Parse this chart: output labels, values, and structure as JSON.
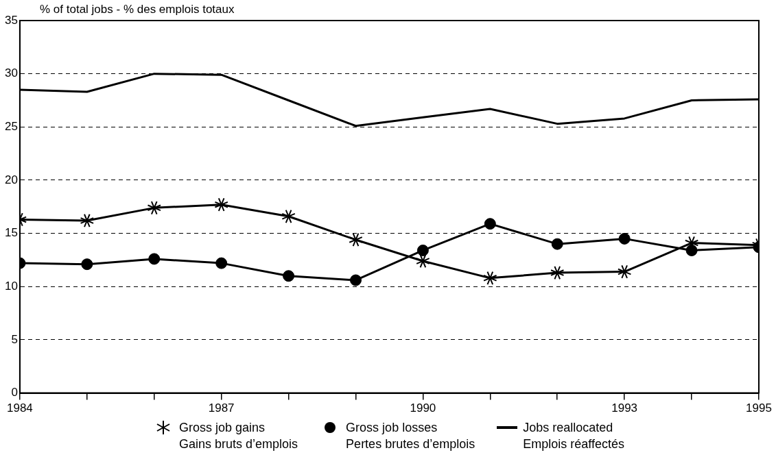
{
  "chart_data": {
    "type": "line",
    "ylabel": "% of total jobs - % des emplois totaux",
    "x": [
      1984,
      1985,
      1986,
      1987,
      1988,
      1989,
      1990,
      1991,
      1992,
      1993,
      1994,
      1995
    ],
    "xlim": [
      1984,
      1995
    ],
    "xticks": [
      1984,
      {
        "value": 1985,
        "label": null
      },
      {
        "value": 1986,
        "label": null
      },
      1987,
      {
        "value": 1988,
        "label": null
      },
      {
        "value": 1989,
        "label": null
      },
      1990,
      {
        "value": 1991,
        "label": null
      },
      {
        "value": 1992,
        "label": null
      },
      1993,
      {
        "value": 1994,
        "label": null
      },
      1995
    ],
    "ylim": [
      0,
      35
    ],
    "yticks": [
      0,
      5,
      10,
      15,
      20,
      25,
      30,
      35
    ],
    "grid": "y",
    "legend": "bottom",
    "series": [
      {
        "name": "Gross job gains\nGains bruts d’emplois",
        "color": "#000000",
        "marker": "cross",
        "values": [
          16.3,
          16.2,
          17.4,
          17.7,
          16.6,
          14.4,
          12.4,
          10.8,
          11.3,
          11.4,
          14.1,
          13.9
        ]
      },
      {
        "name": "Gross job losses\nPertes brutes d’emplois",
        "color": "#000000",
        "marker": "circle",
        "values": [
          12.2,
          12.1,
          12.6,
          12.2,
          11.0,
          10.6,
          13.4,
          15.9,
          14.0,
          14.5,
          13.4,
          13.7
        ]
      },
      {
        "name": "Jobs reallocated\nEmplois réaffectés",
        "color": "#000000",
        "marker": "none",
        "values": [
          28.5,
          28.3,
          30.0,
          29.9,
          27.5,
          25.1,
          25.9,
          26.7,
          25.3,
          25.8,
          27.5,
          27.6
        ]
      }
    ]
  }
}
